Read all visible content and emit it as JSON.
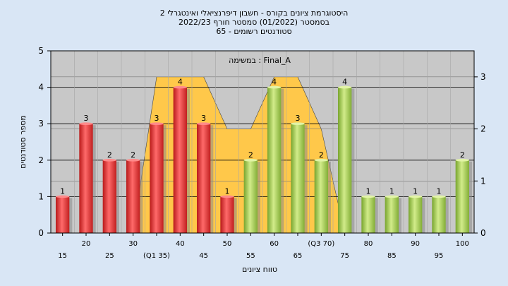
{
  "header": {
    "line1": "היסטוגרמת ציונים בקורס - חשבון דיפרנציאלי ואינטגרלי 2",
    "line2": "בסמסטר  (01/2022)  סמסטר חורף  2022/23",
    "line3": "סטודנטים רשומים - 65"
  },
  "chart_data": {
    "type": "bar",
    "annotation": "במשימה : Final_A",
    "xlabel": "טווח ציונים",
    "ylabel": "מספר סטודנטים",
    "ylim": [
      0,
      5
    ],
    "y2lim": [
      0,
      3.5
    ],
    "y_ticks": [
      0,
      1,
      2,
      3,
      4,
      5
    ],
    "y2_ticks": [
      0,
      1,
      2,
      3
    ],
    "grid": true,
    "categories": [
      "15",
      "20",
      "25",
      "30",
      "(Q1 35)",
      "40",
      "45",
      "50",
      "55",
      "60",
      "65",
      "(Q3 70)",
      "75",
      "80",
      "85",
      "90",
      "95",
      "100"
    ],
    "series": [
      {
        "type": "bar",
        "values": [
          1,
          3,
          2,
          2,
          3,
          4,
          3,
          1,
          2,
          4,
          3,
          2,
          4,
          1,
          1,
          1,
          1,
          2
        ],
        "colors": [
          "#e03a3a",
          "#e03a3a",
          "#e03a3a",
          "#e03a3a",
          "#e03a3a",
          "#e03a3a",
          "#e03a3a",
          "#e03a3a",
          "#9cc94a",
          "#9cc94a",
          "#9cc94a",
          "#9cc94a",
          "#9cc94a",
          "#9cc94a",
          "#9cc94a",
          "#9cc94a",
          "#9cc94a",
          "#9cc94a"
        ]
      },
      {
        "type": "area",
        "x": [
          "30",
          "(Q1 35)",
          "40",
          "45",
          "50",
          "55",
          "60",
          "65",
          "(Q3 70)",
          "75"
        ],
        "values": [
          0,
          3,
          3,
          3,
          2,
          2,
          3,
          3,
          2,
          0
        ],
        "color": "#ffc84a"
      }
    ]
  }
}
